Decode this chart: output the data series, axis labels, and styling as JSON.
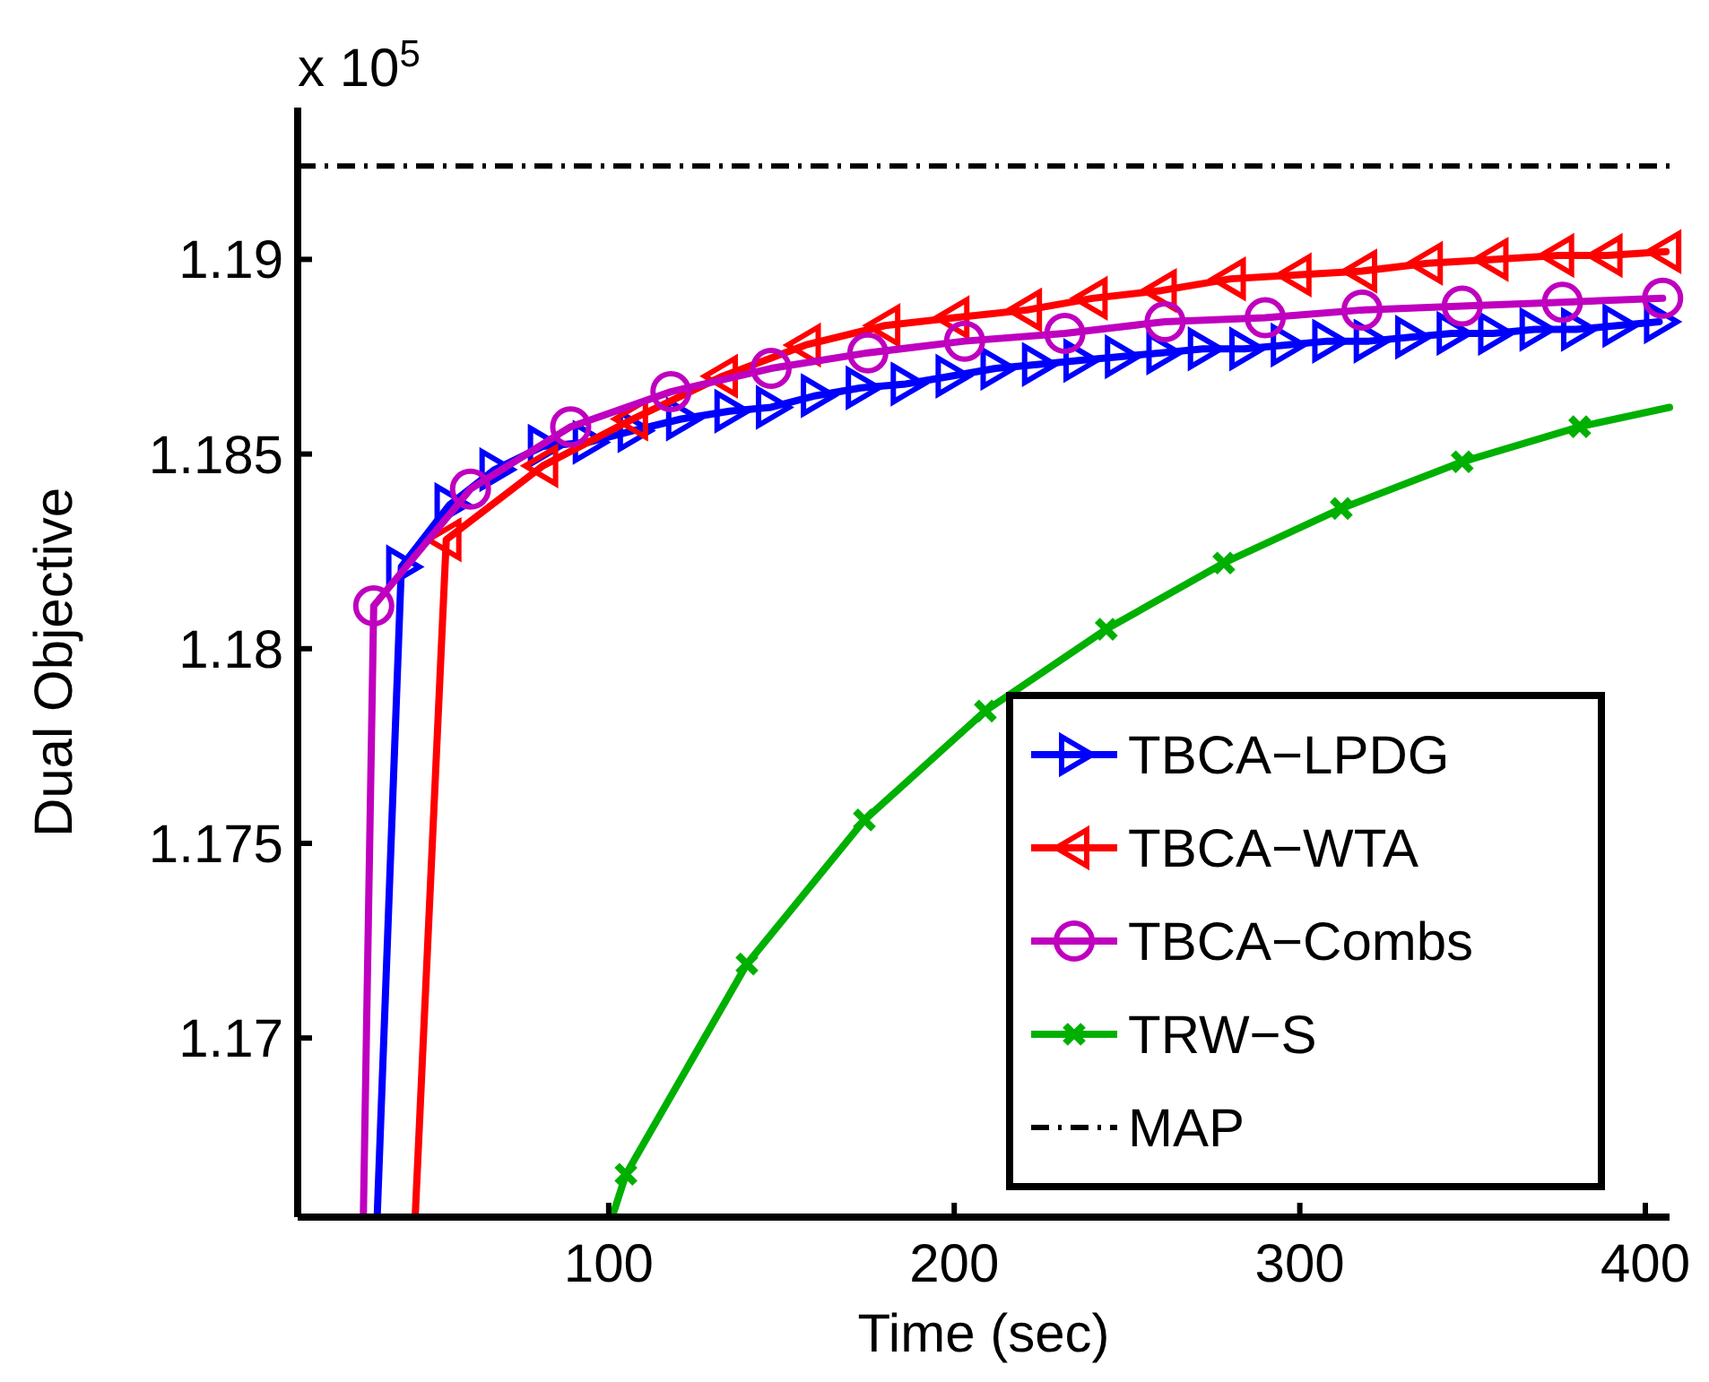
{
  "chart_data": {
    "type": "line",
    "xlabel": "Time (sec)",
    "ylabel": "Dual Objective",
    "annotations": [
      "x 10$^{5}$"
    ],
    "xlim": [
      10,
      407
    ],
    "xticks": [
      100,
      200,
      300,
      400
    ],
    "ylim": [
      1.1654,
      1.1939
    ],
    "yticks": [
      1.17,
      1.175,
      1.18,
      1.185,
      1.19
    ],
    "grid": false,
    "legend": "bottom right",
    "line_style": "solid",
    "series": [
      {
        "name": "TBCA−LPDG",
        "color": "#0000ff",
        "marker": "triangle-right",
        "x": [
          33,
          40,
          54,
          67,
          81,
          94,
          107,
          121,
          135,
          147,
          160,
          173,
          186,
          199,
          212,
          224,
          236,
          248,
          260,
          272,
          284,
          296,
          308,
          320,
          332,
          344,
          356,
          368,
          380,
          392,
          404
        ],
        "values": [
          1.1654,
          1.1821,
          1.1837,
          1.1846,
          1.1852,
          1.1853,
          1.1856,
          1.1859,
          1.1861,
          1.1862,
          1.1865,
          1.1867,
          1.1868,
          1.187,
          1.1872,
          1.1873,
          1.1874,
          1.1875,
          1.1876,
          1.1877,
          1.1877,
          1.1878,
          1.1879,
          1.1879,
          1.188,
          1.1881,
          1.1881,
          1.1882,
          1.1882,
          1.1883,
          1.1884
        ]
      },
      {
        "name": "TBCA−WTA",
        "color": "#ff0000",
        "marker": "triangle-left",
        "x": [
          44,
          53,
          81,
          107,
          133,
          157,
          180,
          200,
          221,
          240,
          260,
          280,
          299,
          318,
          337,
          356,
          375,
          389,
          406
        ],
        "values": [
          1.1654,
          1.1828,
          1.1847,
          1.1859,
          1.187,
          1.1878,
          1.1883,
          1.1885,
          1.1887,
          1.189,
          1.1892,
          1.1895,
          1.1896,
          1.1897,
          1.1899,
          1.19,
          1.1901,
          1.1901,
          1.1902
        ]
      },
      {
        "name": "TBCA−Combs",
        "color": "#bf00bf",
        "marker": "circle",
        "x": [
          29,
          32,
          60,
          89,
          118,
          147,
          175,
          203,
          232,
          261,
          290,
          318,
          347,
          376,
          405
        ],
        "values": [
          1.1654,
          1.1811,
          1.1841,
          1.1857,
          1.1866,
          1.1872,
          1.1876,
          1.1879,
          1.1881,
          1.1884,
          1.1885,
          1.1887,
          1.1888,
          1.1889,
          1.189
        ]
      },
      {
        "name": "TRW−S",
        "color": "#00b000",
        "marker": "cross",
        "x": [
          101,
          105,
          140,
          174,
          209,
          244,
          278,
          312,
          347,
          381,
          407
        ],
        "values": [
          1.1654,
          1.1665,
          1.1719,
          1.1756,
          1.1784,
          1.1805,
          1.1822,
          1.1836,
          1.1848,
          1.1857,
          1.1862
        ]
      }
    ],
    "ref_lines": [
      {
        "axis": "y",
        "value": 1.1924,
        "label": "MAP",
        "color": "#000000",
        "line_style": "dashdot"
      }
    ]
  }
}
